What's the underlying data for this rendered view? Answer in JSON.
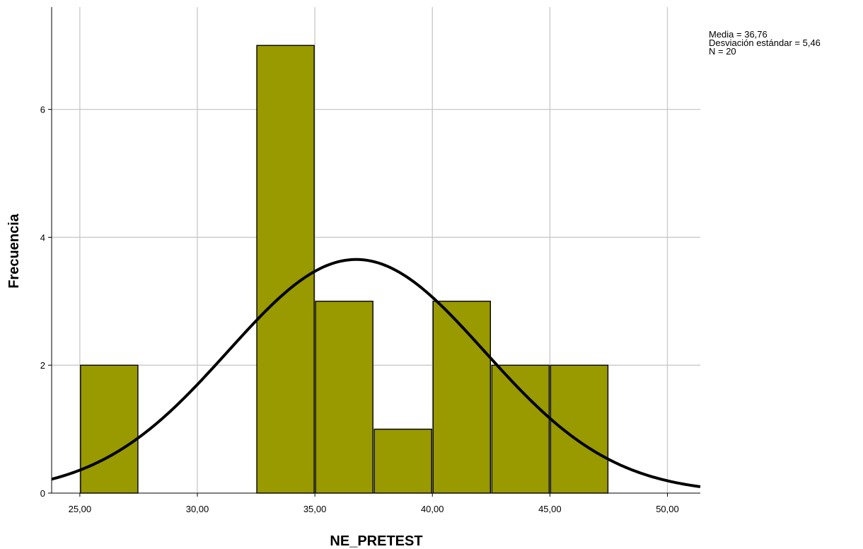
{
  "chart_data": {
    "type": "bar",
    "subtype": "histogram",
    "bin_width": 2.5,
    "bins": [
      {
        "from": 25.0,
        "to": 27.5,
        "count": 2
      },
      {
        "from": 32.5,
        "to": 35.0,
        "count": 7
      },
      {
        "from": 35.0,
        "to": 37.5,
        "count": 3
      },
      {
        "from": 37.5,
        "to": 40.0,
        "count": 1
      },
      {
        "from": 40.0,
        "to": 42.5,
        "count": 3
      },
      {
        "from": 42.5,
        "to": 45.0,
        "count": 2
      },
      {
        "from": 45.0,
        "to": 47.5,
        "count": 2
      }
    ],
    "normal_curve": {
      "mean": 36.76,
      "sd": 5.46,
      "n": 20
    },
    "xlabel": "NE_PRETEST",
    "ylabel": "Frecuencia",
    "xlim": [
      23.8,
      51.4
    ],
    "ylim": [
      0,
      7.6
    ],
    "x_ticks": [
      25,
      30,
      35,
      40,
      45,
      50
    ],
    "x_tick_labels": [
      "25,00",
      "30,00",
      "35,00",
      "40,00",
      "45,00",
      "50,00"
    ],
    "y_ticks": [
      0,
      2,
      4,
      6
    ],
    "y_tick_labels": [
      "0",
      "2",
      "4",
      "6"
    ],
    "grid": true,
    "bar_color": "#999900",
    "bar_edge_color": "#000000",
    "curve_color": "#000000",
    "grid_color": "#c8c8c8",
    "stats_lines": [
      "Media = 36,76",
      "Desviación estándar = 5,46",
      "N = 20"
    ],
    "stats_position": "top-right"
  }
}
